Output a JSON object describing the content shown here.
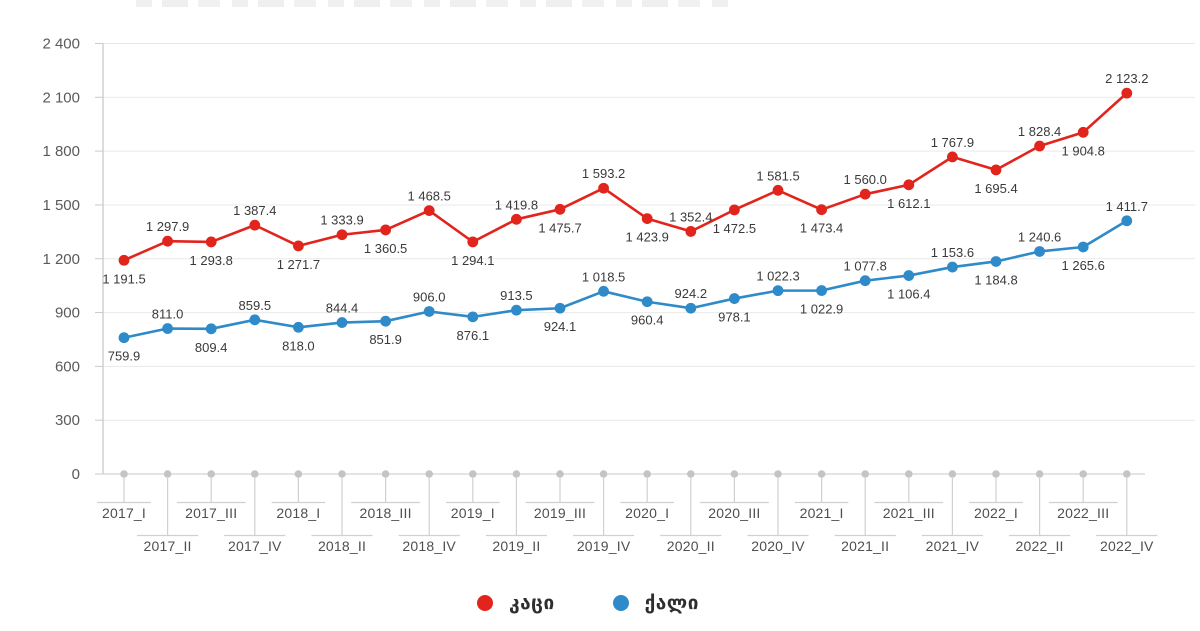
{
  "chart_data": {
    "type": "line",
    "categories": [
      "2017_I",
      "2017_II",
      "2017_III",
      "2017_IV",
      "2018_I",
      "2018_II",
      "2018_III",
      "2018_IV",
      "2019_I",
      "2019_II",
      "2019_III",
      "2019_IV",
      "2020_I",
      "2020_II",
      "2020_III",
      "2020_IV",
      "2021_I",
      "2021_II",
      "2021_III",
      "2021_IV",
      "2022_I",
      "2022_II",
      "2022_III",
      "2022_IV"
    ],
    "series": [
      {
        "name": "კაცი",
        "color": "#e1241c",
        "values": [
          1191.5,
          1297.9,
          1293.8,
          1387.4,
          1271.7,
          1333.9,
          1360.5,
          1468.5,
          1294.1,
          1419.8,
          1475.7,
          1593.2,
          1423.9,
          1352.4,
          1472.5,
          1581.5,
          1473.4,
          1560.0,
          1612.1,
          1767.9,
          1695.4,
          1828.4,
          1904.8,
          2123.2
        ]
      },
      {
        "name": "ქალი",
        "color": "#2e8ac8",
        "values": [
          759.9,
          811.0,
          809.4,
          859.5,
          818.0,
          844.4,
          851.9,
          906.0,
          876.1,
          913.5,
          924.1,
          1018.5,
          960.4,
          924.2,
          978.1,
          1022.3,
          1022.9,
          1077.8,
          1106.4,
          1153.6,
          1184.8,
          1240.6,
          1265.6,
          1411.7
        ]
      }
    ],
    "ylim": [
      0,
      2400
    ],
    "ytick_step": 300,
    "ytick_labels": [
      "0",
      "300",
      "600",
      "900",
      "1 200",
      "1 500",
      "1 800",
      "2 100",
      "2 400"
    ],
    "grid": true,
    "data_labels": true,
    "data_label_placement": "alternating below/above per point",
    "number_format": "space thousands separator, 1 decimal",
    "legend_position": "bottom-center",
    "xlabel": "",
    "ylabel": ""
  }
}
